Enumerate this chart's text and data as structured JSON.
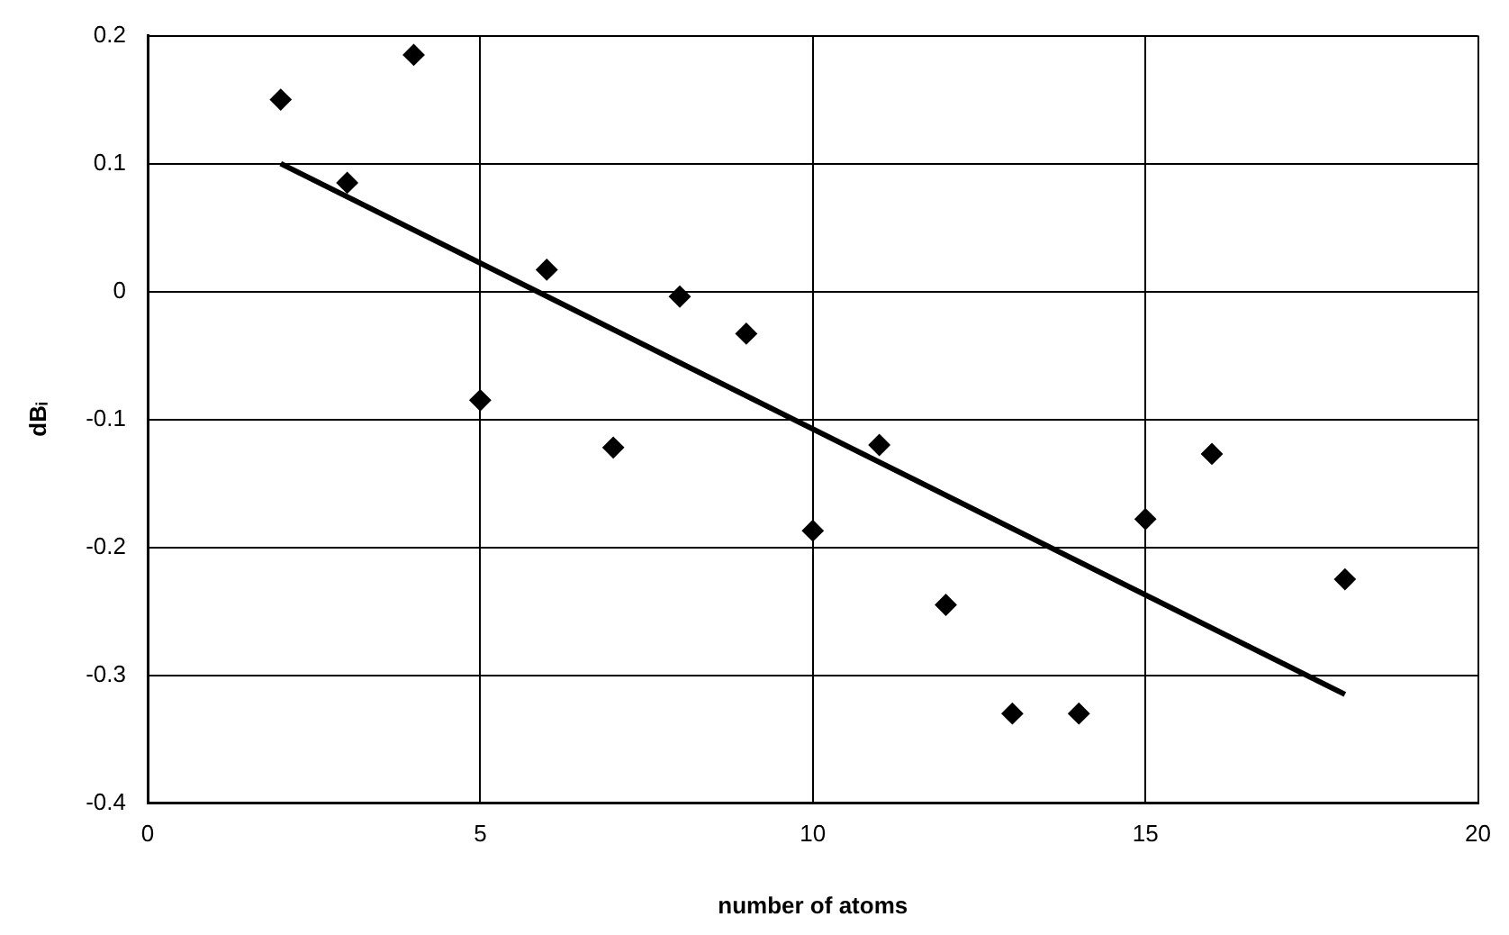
{
  "chart_data": {
    "type": "scatter",
    "xlabel": "number of atoms",
    "ylabel": "dBᵢ",
    "xlim": [
      0,
      20
    ],
    "xticks": [
      0,
      5,
      10,
      15,
      20
    ],
    "ylim": [
      -0.4,
      0.2
    ],
    "yticks": [
      -0.4,
      -0.3,
      -0.2,
      -0.1,
      0,
      0.1,
      0.2
    ],
    "grid": true,
    "legend": false,
    "marker": "diamond",
    "series": [
      {
        "color": "#000000",
        "x": [
          2,
          3,
          4,
          5,
          6,
          7,
          8,
          9,
          10,
          11,
          12,
          13,
          14,
          15,
          16,
          18
        ],
        "values": [
          0.15,
          0.085,
          0.185,
          -0.085,
          0.017,
          -0.122,
          -0.004,
          -0.033,
          -0.187,
          -0.12,
          -0.245,
          -0.33,
          -0.33,
          -0.178,
          -0.127,
          -0.225
        ]
      },
      {
        "type": "line",
        "color": "#000000",
        "marker": "none",
        "x": [
          2,
          18
        ],
        "values": [
          0.1,
          -0.315
        ]
      }
    ]
  }
}
